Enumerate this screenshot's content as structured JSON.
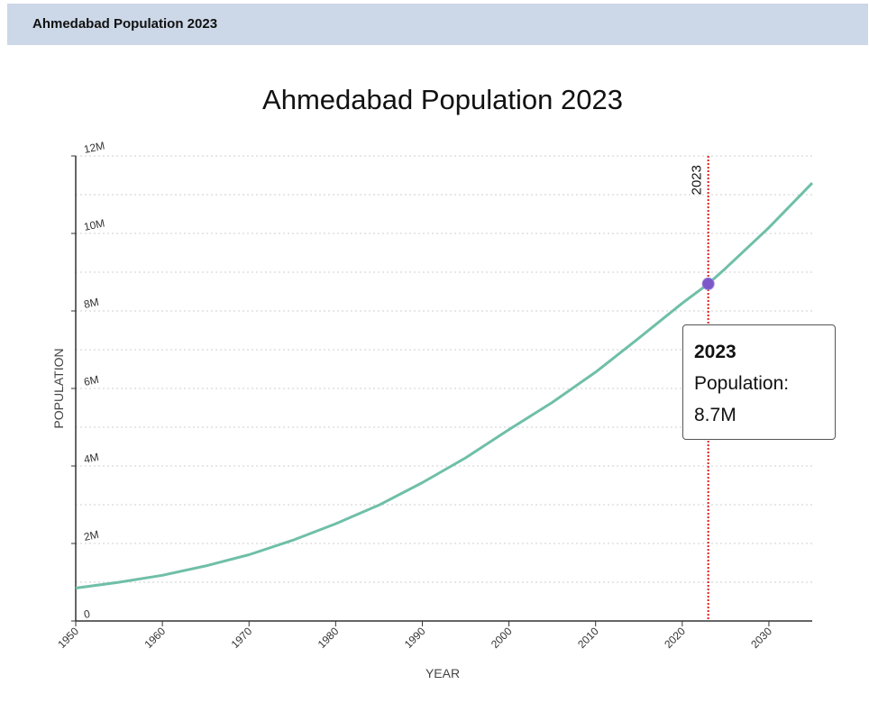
{
  "header": {
    "title": "Ahmedabad Population 2023"
  },
  "chart_data": {
    "type": "line",
    "title": "Ahmedabad Population 2023",
    "xlabel": "YEAR",
    "ylabel": "POPULATION",
    "xlim": [
      1950,
      2035
    ],
    "ylim": [
      0,
      12000000
    ],
    "x_ticks": [
      "1950",
      "1960",
      "1970",
      "1980",
      "1990",
      "2000",
      "2010",
      "2020",
      "2030"
    ],
    "y_ticks": [
      "0",
      "2M",
      "4M",
      "6M",
      "8M",
      "10M",
      "12M"
    ],
    "grid": "horizontal dotted",
    "series": [
      {
        "color": "#6fbfa8",
        "x": [
          1950,
          1955,
          1960,
          1965,
          1970,
          1975,
          1980,
          1985,
          1990,
          1995,
          2000,
          2005,
          2010,
          2015,
          2020,
          2023,
          2025,
          2030,
          2035
        ],
        "values": [
          850000,
          1000000,
          1180000,
          1420000,
          1710000,
          2080000,
          2510000,
          2990000,
          3570000,
          4210000,
          4940000,
          5640000,
          6420000,
          7300000,
          8200000,
          8700000,
          9100000,
          10150000,
          11300000
        ]
      }
    ],
    "marker_line": {
      "x": 2023,
      "label": "2023",
      "color": "#e02020"
    },
    "highlight_point": {
      "x": 2023,
      "y": 8700000,
      "color": "#7b57c7"
    },
    "tooltip": {
      "year": "2023",
      "label": "Population:",
      "value": "8.7M"
    }
  }
}
